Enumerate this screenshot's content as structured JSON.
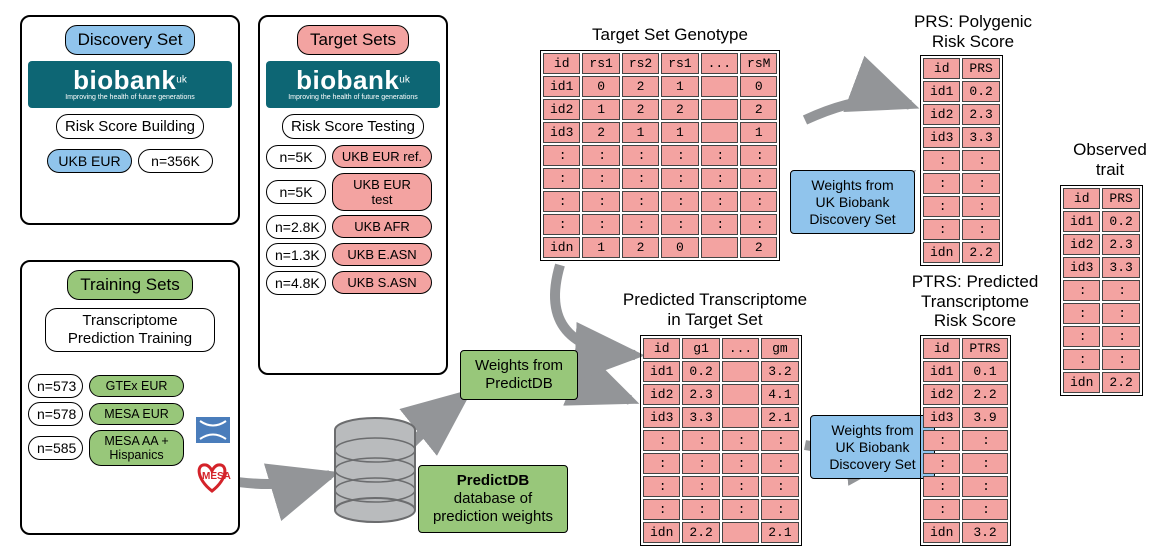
{
  "colors": {
    "blue": "#90c4ec",
    "green": "#98c77a",
    "red": "#f3a3a1",
    "biobank_bg": "#0d6674",
    "arrow": "#939598",
    "cylinder_fill": "#b9bbbd",
    "cylinder_stroke": "#6b6c6e"
  },
  "discovery": {
    "title": "Discovery Set",
    "biobank_label": "biobank",
    "biobank_sup": "uk",
    "biobank_tagline": "Improving the health of future generations",
    "subtitle": "Risk Score Building",
    "pop": "UKB EUR",
    "n": "n=356K"
  },
  "training": {
    "title": "Training Sets",
    "subtitle": "Transcriptome Prediction Training",
    "rows": [
      {
        "n": "n=573",
        "label": "GTEx EUR"
      },
      {
        "n": "n=578",
        "label": "MESA EUR"
      },
      {
        "n": "n=585",
        "label": "MESA AA + Hispanics"
      }
    ],
    "mesa_text": "MESA"
  },
  "target": {
    "title": "Target Sets",
    "biobank_label": "biobank",
    "biobank_sup": "uk",
    "biobank_tagline": "Improving the health of future generations",
    "subtitle": "Risk Score Testing",
    "rows": [
      {
        "n": "n=5K",
        "label": "UKB EUR ref."
      },
      {
        "n": "n=5K",
        "label": "UKB EUR test"
      },
      {
        "n": "n=2.8K",
        "label": "UKB AFR"
      },
      {
        "n": "n=1.3K",
        "label": "UKB E.ASN"
      },
      {
        "n": "n=4.8K",
        "label": "UKB S.ASN"
      }
    ]
  },
  "predictdb_weights": "Weights from PredictDB",
  "predictdb_db": {
    "l1": "PredictDB",
    "l2": "database of",
    "l3": "prediction weights"
  },
  "ukbb_weights": {
    "l1": "Weights from",
    "l2": "UK Biobank",
    "l3": "Discovery Set"
  },
  "genotype": {
    "title": "Target Set Genotype",
    "cols": [
      "id",
      "rs1",
      "rs2",
      "rs1",
      "...",
      "rsM"
    ],
    "rows": [
      [
        "id1",
        "0",
        "2",
        "1",
        "",
        "0"
      ],
      [
        "id2",
        "1",
        "2",
        "2",
        "",
        "2"
      ],
      [
        "id3",
        "2",
        "1",
        "1",
        "",
        "1"
      ]
    ],
    "last": [
      "idn",
      "1",
      "2",
      "0",
      "",
      "2"
    ]
  },
  "transcriptome": {
    "title_l1": "Predicted Transcriptome",
    "title_l2": "in Target Set",
    "cols": [
      "id",
      "g1",
      "...",
      "gm"
    ],
    "rows": [
      [
        "id1",
        "0.2",
        "",
        "3.2"
      ],
      [
        "id2",
        "2.3",
        "",
        "4.1"
      ],
      [
        "id3",
        "3.3",
        "",
        "2.1"
      ]
    ],
    "last": [
      "idn",
      "2.2",
      "",
      "2.1"
    ]
  },
  "prs": {
    "title_l1": "PRS: Polygenic",
    "title_l2": "Risk Score",
    "cols": [
      "id",
      "PRS"
    ],
    "rows": [
      [
        "id1",
        "0.2"
      ],
      [
        "id2",
        "2.3"
      ],
      [
        "id3",
        "3.3"
      ]
    ],
    "last": [
      "idn",
      "2.2"
    ]
  },
  "ptrs": {
    "title_l1": "PTRS: Predicted",
    "title_l2": "Transcriptome",
    "title_l3": "Risk Score",
    "cols": [
      "id",
      "PTRS"
    ],
    "rows": [
      [
        "id1",
        "0.1"
      ],
      [
        "id2",
        "2.2"
      ],
      [
        "id3",
        "3.9"
      ]
    ],
    "last": [
      "idn",
      "3.2"
    ]
  },
  "observed": {
    "title_l1": "Observed",
    "title_l2": "trait",
    "cols": [
      "id",
      "PRS"
    ],
    "rows": [
      [
        "id1",
        "0.2"
      ],
      [
        "id2",
        "2.3"
      ],
      [
        "id3",
        "3.3"
      ]
    ],
    "last": [
      "idn",
      "2.2"
    ]
  }
}
